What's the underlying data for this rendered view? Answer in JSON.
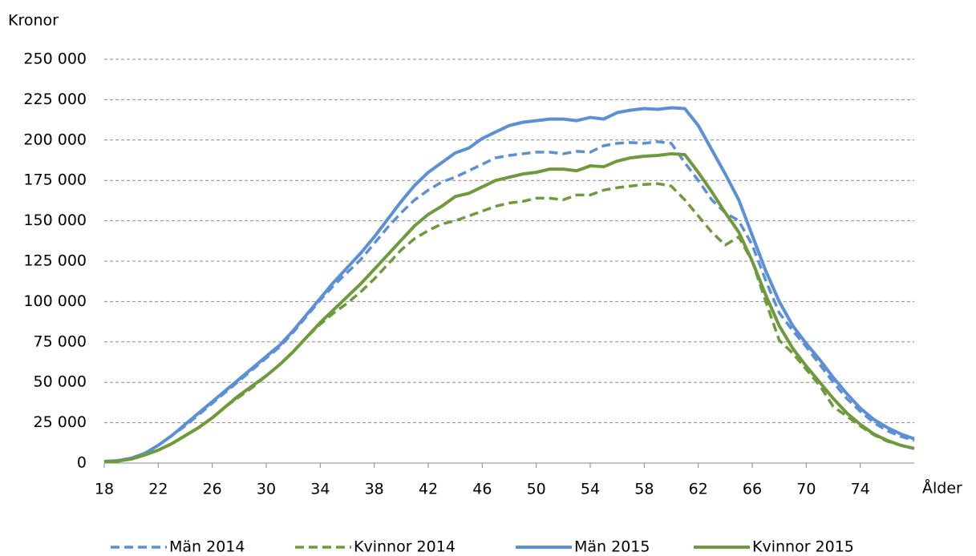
{
  "chart_data": {
    "type": "line",
    "y_label": "Kronor",
    "x_label": "Ålder",
    "x": [
      18,
      19,
      20,
      21,
      22,
      23,
      24,
      25,
      26,
      27,
      28,
      29,
      30,
      31,
      32,
      33,
      34,
      35,
      36,
      37,
      38,
      39,
      40,
      41,
      42,
      43,
      44,
      45,
      46,
      47,
      48,
      49,
      50,
      51,
      52,
      53,
      54,
      55,
      56,
      57,
      58,
      59,
      60,
      61,
      62,
      63,
      64,
      65,
      66,
      67,
      68,
      69,
      70,
      71,
      72,
      73,
      74,
      75,
      76,
      77,
      78
    ],
    "xlim": [
      18,
      78
    ],
    "xticks": [
      18,
      22,
      26,
      30,
      34,
      38,
      42,
      46,
      50,
      54,
      58,
      62,
      66,
      70,
      74
    ],
    "ylim": [
      0,
      250000
    ],
    "yticks": [
      0,
      {
        "value": 25000,
        "label": "25 000"
      },
      {
        "value": 50000,
        "label": "50 000"
      },
      {
        "value": 75000,
        "label": "75 000"
      },
      {
        "value": 100000,
        "label": "100 000"
      },
      {
        "value": 125000,
        "label": "125 000"
      },
      {
        "value": 150000,
        "label": "150 000"
      },
      {
        "value": 175000,
        "label": "175 000"
      },
      {
        "value": 200000,
        "label": "200 000"
      },
      {
        "value": 225000,
        "label": "225 000"
      },
      {
        "value": 250000,
        "label": "250 000"
      }
    ],
    "grid": true,
    "legend": "bottom",
    "series": [
      {
        "name": "Män 2014",
        "color": "#5b8fd6",
        "dashed": true,
        "values": [
          1000,
          1500,
          3000,
          6000,
          11000,
          17000,
          23000,
          30000,
          37000,
          44000,
          51000,
          58000,
          65000,
          72000,
          81000,
          91000,
          101000,
          110000,
          118000,
          126000,
          136000,
          146000,
          155000,
          163000,
          169000,
          174000,
          177000,
          181000,
          185000,
          189000,
          190500,
          191500,
          192500,
          192500,
          191500,
          193000,
          192500,
          196500,
          198000,
          198500,
          198000,
          199000,
          198000,
          186000,
          175000,
          163000,
          155000,
          150000,
          135000,
          113000,
          93000,
          82000,
          72000,
          61000,
          50000,
          40000,
          32000,
          25000,
          20000,
          16500,
          14000
        ]
      },
      {
        "name": "Kvinnor 2014",
        "color": "#6e9a3b",
        "dashed": true,
        "values": [
          1000,
          1200,
          2500,
          5000,
          8000,
          12000,
          17000,
          22000,
          28000,
          35000,
          41000,
          47000,
          54000,
          61000,
          69000,
          78000,
          86000,
          93000,
          99000,
          106000,
          114000,
          123000,
          132000,
          139000,
          144000,
          148000,
          150000,
          153000,
          156000,
          159000,
          161000,
          162000,
          164000,
          164000,
          163000,
          166000,
          166000,
          169000,
          170500,
          171500,
          172500,
          173000,
          171500,
          163000,
          153000,
          143000,
          135000,
          140000,
          125000,
          100000,
          76000,
          68000,
          58000,
          48000,
          35000,
          29000,
          23000,
          17500,
          13500,
          11000,
          9000
        ]
      },
      {
        "name": "Män 2015",
        "color": "#5b8fd6",
        "dashed": false,
        "values": [
          1000,
          1500,
          3000,
          6000,
          11000,
          17000,
          24000,
          31000,
          38000,
          45000,
          52000,
          59000,
          66000,
          73000,
          82000,
          92000,
          102000,
          112000,
          121000,
          130000,
          140000,
          151000,
          162000,
          172000,
          180000,
          186000,
          192000,
          195000,
          201000,
          205000,
          209000,
          211000,
          212000,
          213000,
          213000,
          212000,
          214000,
          213000,
          217000,
          218500,
          219500,
          219000,
          220000,
          219500,
          209000,
          194000,
          179000,
          163000,
          141000,
          119000,
          100000,
          85000,
          74000,
          64000,
          53000,
          43000,
          34000,
          27000,
          22000,
          18000,
          15000
        ]
      },
      {
        "name": "Kvinnor 2015",
        "color": "#6e9a3b",
        "dashed": false,
        "values": [
          1000,
          1200,
          2500,
          5000,
          8000,
          12000,
          17000,
          22000,
          28000,
          35000,
          42000,
          48000,
          54000,
          61000,
          69000,
          78000,
          87000,
          95000,
          103000,
          111000,
          120000,
          129000,
          138000,
          147000,
          154000,
          159000,
          165000,
          167000,
          171000,
          175000,
          177000,
          179000,
          180000,
          182000,
          182000,
          181000,
          184000,
          183500,
          187000,
          189000,
          190000,
          190500,
          191500,
          191000,
          180000,
          168000,
          155000,
          143000,
          125000,
          104000,
          85000,
          71000,
          60000,
          50000,
          40000,
          31000,
          24000,
          18000,
          14000,
          11000,
          9000
        ]
      }
    ]
  }
}
